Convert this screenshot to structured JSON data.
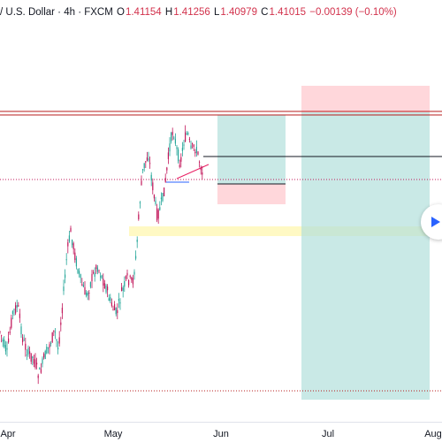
{
  "legend": {
    "symbol": "/ U.S. Dollar · 4h · FXCM",
    "o_label": "O",
    "o_value": "1.41154",
    "h_label": "H",
    "h_value": "1.41256",
    "l_label": "L",
    "l_value": "1.40979",
    "c_label": "C",
    "c_value": "1.41015",
    "change": "−0.00139 (−0.10%)"
  },
  "time_axis": {
    "ticks": [
      {
        "name": "tick-apr",
        "label": "Apr"
      },
      {
        "name": "tick-may",
        "label": "May"
      },
      {
        "name": "tick-jun",
        "label": "Jun"
      },
      {
        "name": "tick-jul",
        "label": "Jul"
      },
      {
        "name": "tick-aug",
        "label": "Aug"
      }
    ]
  },
  "colors": {
    "up": "#26a69a",
    "down": "#c2185b",
    "resistance": "#b71c1c",
    "support": "#b71c1c",
    "profit_zone": "#b2dfdb",
    "loss_zone": "#ffcdd2",
    "highlight": "#fff59d",
    "play_accent": "#2962ff"
  },
  "icons": {
    "play": "play-triangle-icon"
  }
}
